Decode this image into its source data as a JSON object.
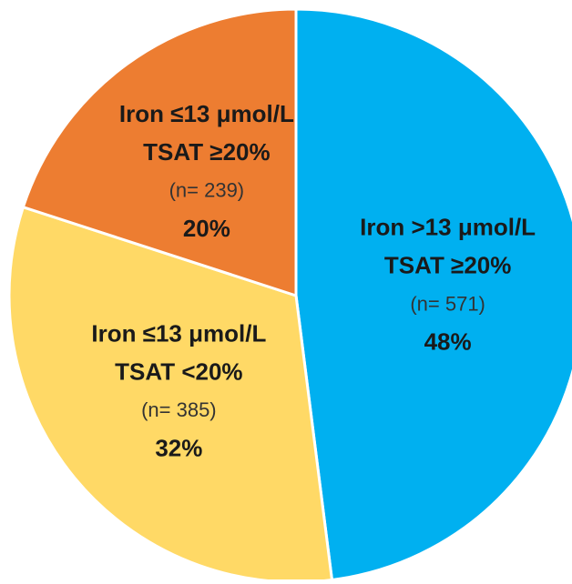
{
  "chart_data": {
    "type": "pie",
    "labels": [
      [
        "Iron >13 μmol/L",
        "TSAT ≥20%"
      ],
      [
        "Iron ≤13 μmol/L",
        "TSAT <20%"
      ],
      [
        "Iron ≤13 μmol/L",
        "TSAT ≥20%"
      ]
    ],
    "counts": [
      571,
      385,
      239
    ],
    "count_labels": [
      "(n= 571)",
      "(n= 385)",
      "(n= 239)"
    ],
    "values": [
      48,
      32,
      20
    ],
    "value_labels": [
      "48%",
      "32%",
      "20%"
    ],
    "colors": [
      "#00b0f0",
      "#ffd966",
      "#ed7d31"
    ]
  }
}
